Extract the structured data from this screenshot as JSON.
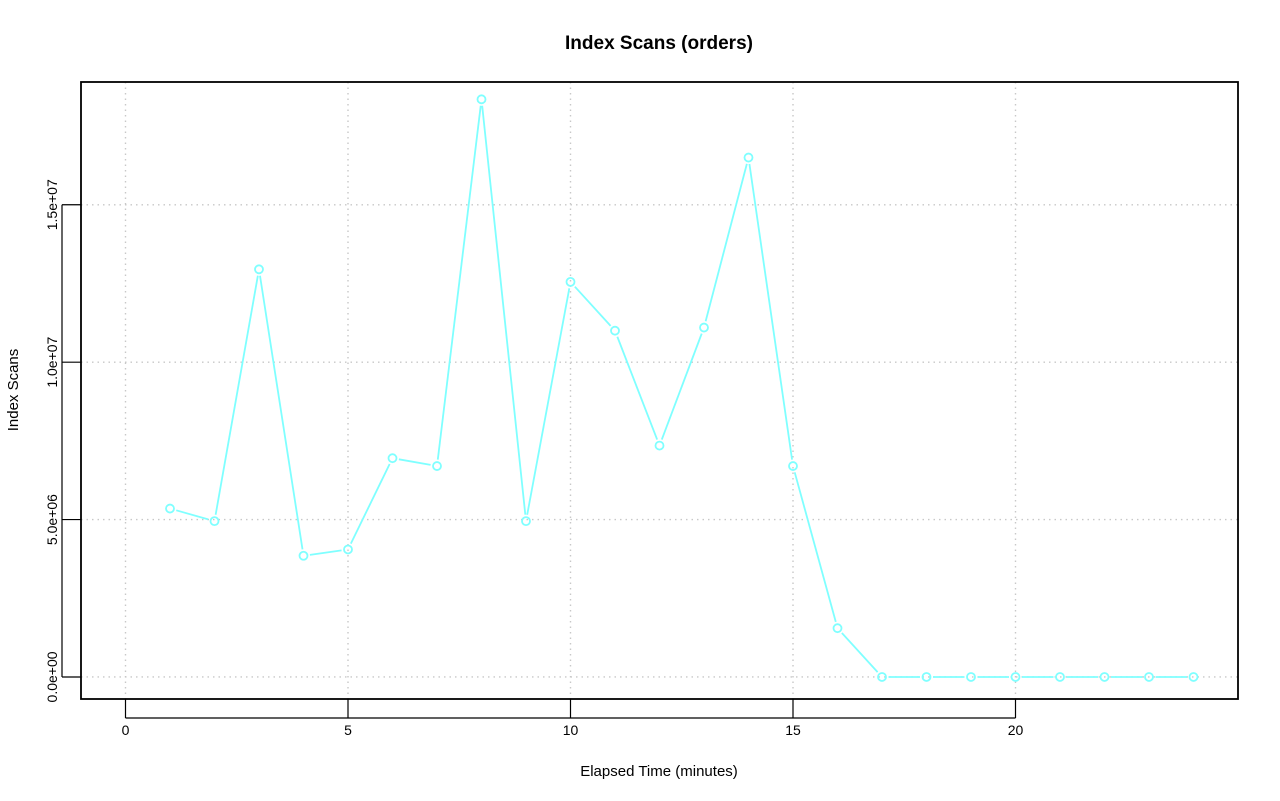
{
  "chart_data": {
    "type": "line",
    "title": "Index Scans (orders)",
    "xlabel": "Elapsed Time (minutes)",
    "ylabel": "Index Scans",
    "xlim": [
      -1,
      25
    ],
    "ylim": [
      -700000,
      18900000
    ],
    "xticks": [
      0,
      5,
      10,
      15,
      20
    ],
    "xtick_labels": [
      "0",
      "5",
      "10",
      "15",
      "20"
    ],
    "yticks": [
      0,
      5000000,
      10000000,
      15000000
    ],
    "ytick_labels": [
      "0.0e+00",
      "5.0e+06",
      "1.0e+07",
      "1.5e+07"
    ],
    "grid": true,
    "legend": "none",
    "series": [
      {
        "color": "#7fffff",
        "marker": "circle",
        "x": [
          1,
          2,
          3,
          4,
          5,
          6,
          7,
          8,
          9,
          10,
          11,
          12,
          13,
          14,
          15,
          16,
          17,
          18,
          19,
          20,
          21,
          22,
          23,
          24
        ],
        "values": [
          5350000,
          4950000,
          12950000,
          3850000,
          4050000,
          6950000,
          6700000,
          18350000,
          4950000,
          12550000,
          11000000,
          7350000,
          11100000,
          16500000,
          6700000,
          1550000,
          0,
          0,
          0,
          0,
          0,
          0,
          0,
          0
        ]
      }
    ]
  }
}
